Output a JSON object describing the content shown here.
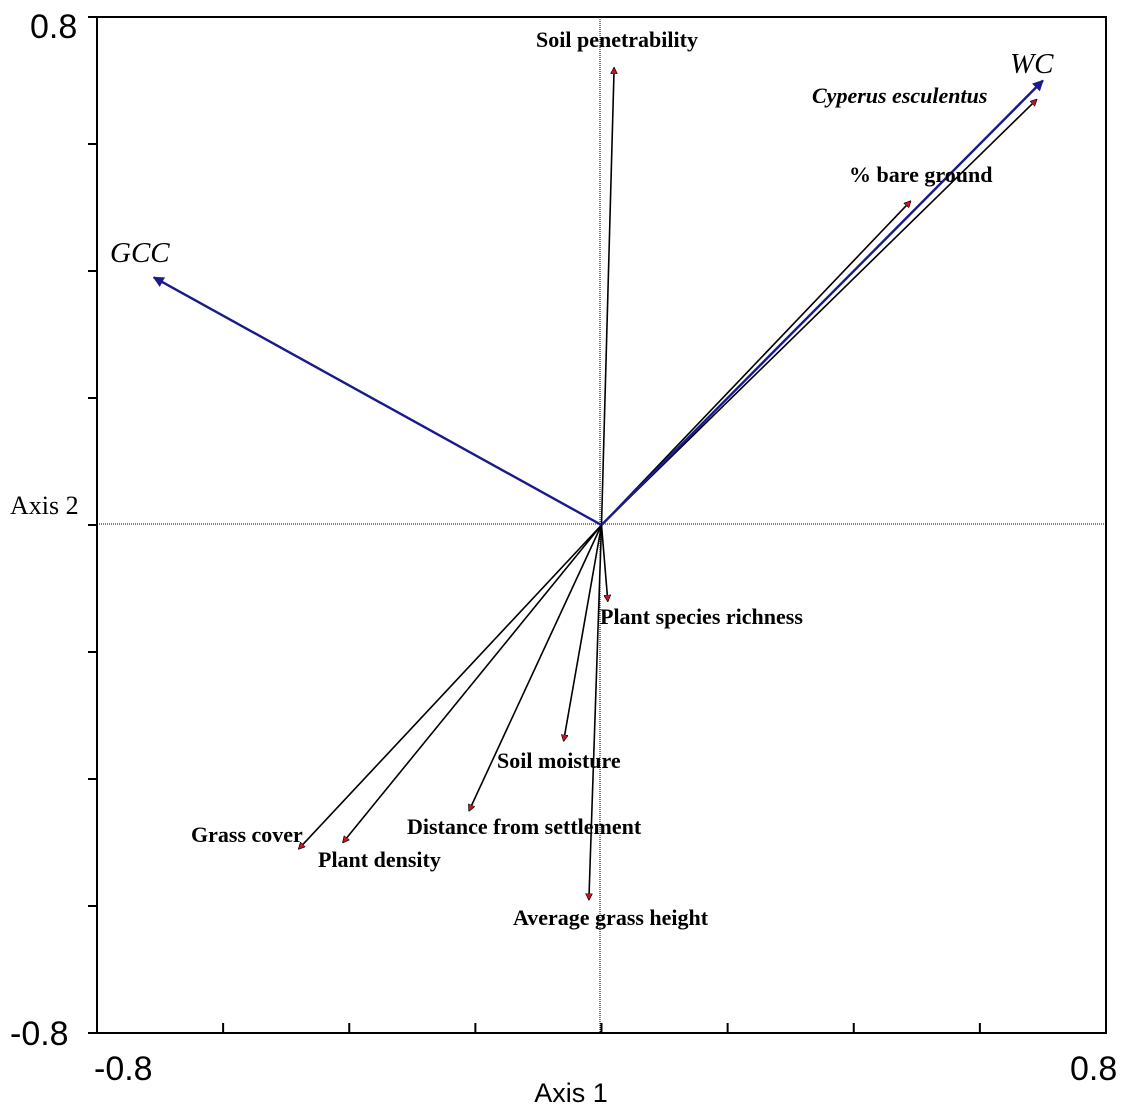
{
  "chart_data": {
    "type": "biplot",
    "xlabel": "Axis 1",
    "ylabel": "Axis 2",
    "xlim": [
      -0.8,
      0.8
    ],
    "ylim": [
      -0.8,
      0.8
    ],
    "tick_labels": {
      "x_min": "-0.8",
      "x_max": "0.8",
      "y_min": "-0.8",
      "y_max": "0.8"
    },
    "minor_ticks_per_side": 4,
    "origin_crosshair": true,
    "colors": {
      "species_arrow": "#000000",
      "arrowhead_fill": "#cc1122",
      "supplementary_arrow": "#1a1a8c"
    },
    "variables": [
      {
        "label": "Soil penetrability",
        "x": 0.02,
        "y": 0.72,
        "italic": false
      },
      {
        "label": "Cyperus esculentus",
        "x": 0.69,
        "y": 0.67,
        "italic": true
      },
      {
        "label": "% bare ground",
        "x": 0.49,
        "y": 0.51,
        "italic": false
      },
      {
        "label": "Plant species richness",
        "x": 0.01,
        "y": -0.12,
        "italic": false
      },
      {
        "label": "Soil moisture",
        "x": -0.06,
        "y": -0.34,
        "italic": false
      },
      {
        "label": "Distance from settlement",
        "x": -0.21,
        "y": -0.45,
        "italic": false
      },
      {
        "label": "Grass cover",
        "x": -0.48,
        "y": -0.51,
        "italic": false
      },
      {
        "label": "Plant density",
        "x": -0.41,
        "y": -0.5,
        "italic": false
      },
      {
        "label": "Average grass height",
        "x": -0.02,
        "y": -0.59,
        "italic": false
      }
    ],
    "supplementary": [
      {
        "label": "WC",
        "x": 0.7,
        "y": 0.7
      },
      {
        "label": "GCC",
        "x": -0.71,
        "y": 0.39
      }
    ]
  }
}
